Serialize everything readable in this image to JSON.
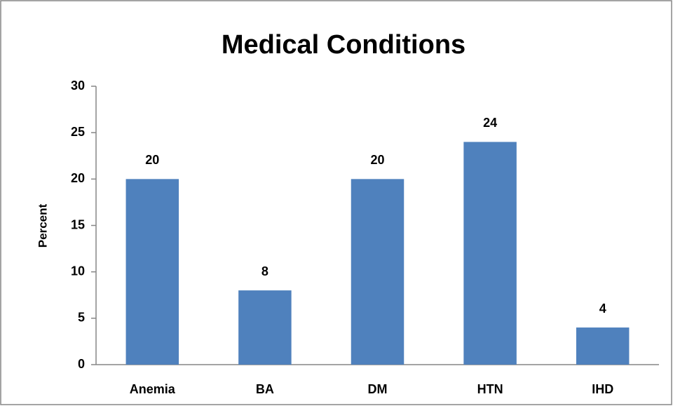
{
  "chart_data": {
    "type": "bar",
    "title": "Medical Conditions",
    "y_label": "Percent",
    "categories": [
      "Anemia",
      "BA",
      "DM",
      "HTN",
      "IHD"
    ],
    "values": [
      20,
      8,
      20,
      24,
      4
    ],
    "color": "#4f81bd",
    "ylim": [
      0,
      30
    ],
    "yticks": [
      0,
      5,
      10,
      15,
      20,
      25,
      30
    ],
    "grid": false,
    "data_labels": true
  }
}
